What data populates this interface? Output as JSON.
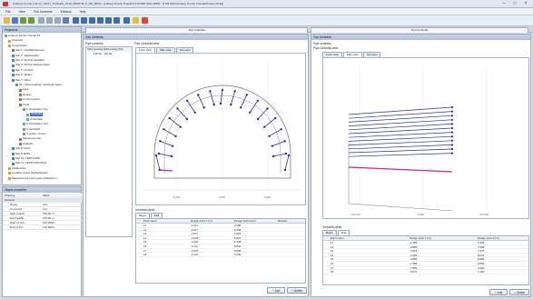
{
  "window": {
    "title": "Amberg Tunnel 2.19 (3_TSCH_Tn2Sub5_AT10_PRUF45_P_Dfz_BKS) - Amberg Tunnel Projekt KT-CHM8 (Stat 1953) - N:\\STOXX\\Amberg Tunnel Tutorial\\Projekt 10.atg"
  },
  "menu": [
    "File",
    "View",
    "Tool Umbrella",
    "Window",
    "Help"
  ],
  "icons": {
    "minimize": "minimize-icon",
    "maximize": "maximize-icon",
    "close": "close-icon"
  },
  "toolbar": [
    "open",
    "save",
    "undo",
    "redo",
    "cut",
    "copy",
    "paste",
    "print",
    "zoom",
    "pan",
    "measure",
    "grid",
    "layers",
    "settings",
    "highlight",
    "select",
    "help"
  ],
  "doc_tabs": [
    "Tool Umbrella",
    "Tool Umbrella"
  ],
  "projects": {
    "header": "Projectors",
    "items": [
      {
        "label": "Amberg Tunnel Tutorial 10",
        "level": 0
      },
      {
        "label": "Structure",
        "level": 1
      },
      {
        "label": "Construction",
        "level": 1
      },
      {
        "label": "Site 1: Landfahrtstunnel",
        "level": 2
      },
      {
        "label": "Site 2: Tagesstollen",
        "level": 2
      },
      {
        "label": "Site 3: SST12 Landfahrt",
        "level": 2
      },
      {
        "label": "Site 4: SST12 Wasserstollen",
        "level": 2
      },
      {
        "label": "Site 5: Vortrieb",
        "level": 2
      },
      {
        "label": "Site 6: Station",
        "level": 2
      },
      {
        "label": "Site 7: Other",
        "level": 2
      },
      {
        "label": "29 - Tube heading / Ausbruch (stat.)",
        "level": 3
      },
      {
        "label": "Face",
        "level": 4
      },
      {
        "label": "Design",
        "level": 4
      },
      {
        "label": "Control points",
        "level": 4
      },
      {
        "label": "Tools",
        "level": 4
      },
      {
        "label": "1: Excavation Top",
        "level": 5
      },
      {
        "label": "Umbrella",
        "level": 6,
        "selected": true
      },
      {
        "label": "Umbrella2",
        "level": 6
      },
      {
        "label": "2: Excavation Full",
        "level": 5
      },
      {
        "label": "3: Gleisfeld",
        "level": 5
      },
      {
        "label": "4: Anker / Kreuz",
        "level": 5
      },
      {
        "label": "Measurements",
        "level": 4
      },
      {
        "label": "Analysis",
        "level": 4
      },
      {
        "label": "Site 8: Nord",
        "level": 2
      },
      {
        "label": "Site 9: EMA",
        "level": 2
      },
      {
        "label": "Site 10: TESTS A08",
        "level": 2
      },
      {
        "label": "Site 11: TESTS PROFILE",
        "level": 2
      },
      {
        "label": "Gridsession",
        "level": 1
      },
      {
        "label": "Location codes (Gebietskreis)",
        "level": 1
      },
      {
        "label": "Measurement point types (Gebiet/tun...",
        "level": 1
      }
    ]
  },
  "properties": {
    "header": "Object properties",
    "col1": "Property",
    "col2": "Value",
    "group": "General",
    "rows": [
      {
        "k": "Name",
        "v": "(nn)"
      },
      {
        "k": "Comment",
        "v": "(nn)"
      },
      {
        "k": "Start headin...",
        "v": "155.00 m"
      },
      {
        "k": "End headin...",
        "v": "155.00 m"
      },
      {
        "k": "Start of Tun...",
        "v": "125.0000"
      },
      {
        "k": "End of Tun...",
        "v": "125.0000"
      }
    ]
  },
  "left_view": {
    "header": "Tool Umbrella",
    "pipe_umbrella": "Pipe umbrella",
    "pipe_umbrella_view": "Pipe Umbrella view",
    "list_header": "Start heading Wall-ending [Ch]",
    "list_value": "155.00 - 125.00",
    "view_tabs": [
      "Front view",
      "Side view",
      "Top view"
    ],
    "active_tab": 0,
    "axis_ticks": [
      "-5.000",
      "0.000",
      "5.000"
    ],
    "pipes_label": "Umbrella pipes",
    "grid_tabs": [
      "Begin",
      "End"
    ],
    "columns": [
      "Point name",
      "Design point Y [m]",
      "Design point Z [m]",
      "Remark"
    ],
    "rows": [
      [
        "11",
        "-6.211",
        "4.490",
        ""
      ],
      [
        "12",
        "-5.617",
        "5.468",
        ""
      ],
      [
        "13",
        "-4.971",
        "6.094",
        ""
      ],
      [
        "14",
        "-4.543",
        "6.297",
        ""
      ],
      [
        "15",
        "-4.118",
        "6.448",
        ""
      ],
      [
        "16",
        "-3.711",
        "6.806",
        ""
      ],
      [
        "17",
        "-3.375",
        "6.886",
        ""
      ],
      [
        "18",
        "-6.121",
        "0.000",
        ""
      ]
    ],
    "add": "Add",
    "delete": "Delete"
  },
  "right_view": {
    "header": "Tool Umbrella",
    "pipe_umbrella": "Pipe umbrella",
    "pipe_umbrella_view": "Pipe Umbrella view",
    "view_tabs": [
      "Front view",
      "Side view",
      "Top view"
    ],
    "active_tab": 1,
    "axis_ticks": [
      "-100.000",
      "0.000",
      "100.000"
    ],
    "pipes_label": "Umbrella pipes",
    "grid_tabs": [
      "Begin",
      "End"
    ],
    "columns": [
      "Point name",
      "Design point Y [m]",
      "Design point Z [m]"
    ],
    "rows": [
      [
        "11",
        "-2.195",
        "6.446"
      ],
      [
        "12",
        "-2.885",
        "7.808"
      ],
      [
        "13",
        "-3.612",
        "7.075"
      ],
      [
        "14",
        "-4.363",
        "8.072"
      ],
      [
        "15",
        "-4.886",
        "8.460"
      ],
      [
        "16",
        "-7.089",
        "3.800"
      ],
      [
        "17",
        "-7.856",
        "3.000"
      ],
      [
        "18",
        "-8.672",
        "2.184"
      ]
    ],
    "add": "Add",
    "delete": "Delete"
  }
}
